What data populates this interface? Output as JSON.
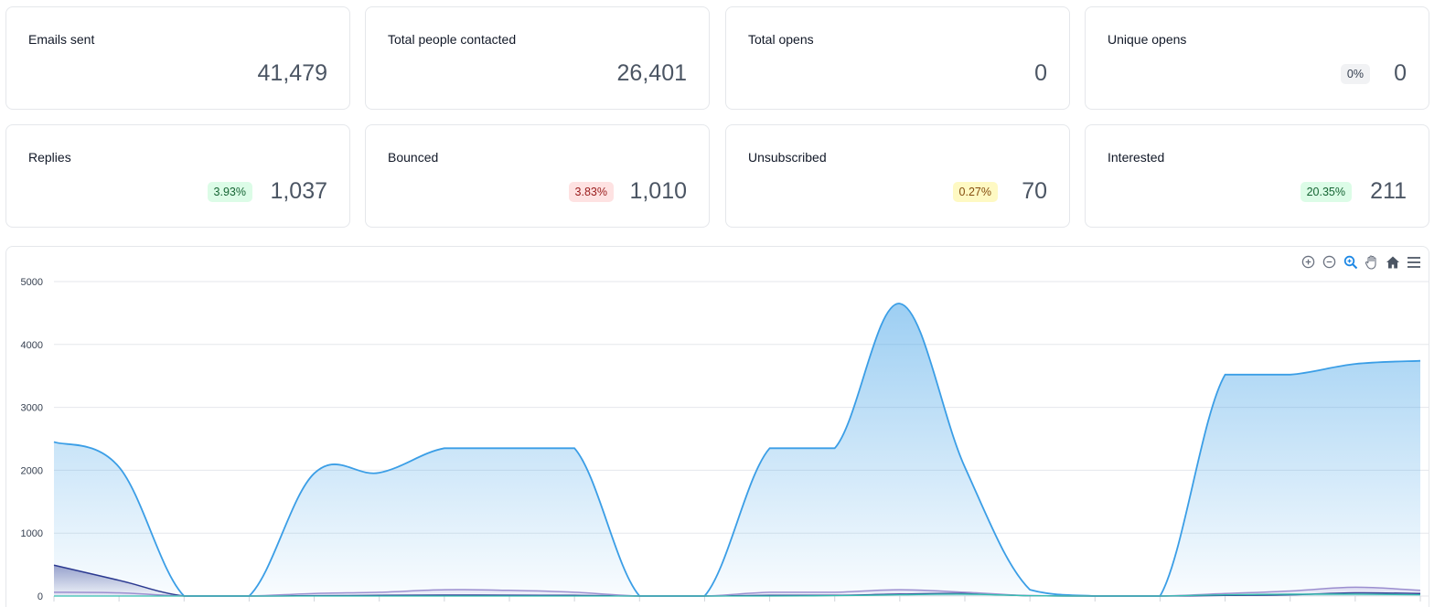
{
  "stats": [
    {
      "label": "Emails sent",
      "value": "41,479",
      "badge": null
    },
    {
      "label": "Total people contacted",
      "value": "26,401",
      "badge": null
    },
    {
      "label": "Total opens",
      "value": "0",
      "badge": null
    },
    {
      "label": "Unique opens",
      "value": "0",
      "badge": "0%",
      "badge_color": "gray"
    },
    {
      "label": "Replies",
      "value": "1,037",
      "badge": "3.93%",
      "badge_color": "green"
    },
    {
      "label": "Bounced",
      "value": "1,010",
      "badge": "3.83%",
      "badge_color": "red"
    },
    {
      "label": "Unsubscribed",
      "value": "70",
      "badge": "0.27%",
      "badge_color": "yellow"
    },
    {
      "label": "Interested",
      "value": "211",
      "badge": "20.35%",
      "badge_color": "green"
    }
  ],
  "toolbar": {
    "icons": [
      "zoom-in-icon",
      "zoom-out-icon",
      "magnifier-icon",
      "pan-hand-icon",
      "home-icon",
      "menu-icon"
    ]
  },
  "colors": {
    "primary_area": "#3b9ee6",
    "secondary_area": "#2b3990",
    "tertiary_line": "#9c8fd0",
    "teal_line": "#35c0b0"
  },
  "chart_data": {
    "type": "area",
    "ylim": [
      0,
      5000
    ],
    "y_ticks": [
      "0",
      "1000",
      "2000",
      "3000",
      "4000",
      "5000"
    ],
    "x_count": 22,
    "series": [
      {
        "values": [
          2450,
          2050,
          0,
          0,
          1950,
          1960,
          2350,
          2350,
          2350,
          0,
          0,
          2350,
          2350,
          4650,
          2050,
          100,
          0,
          0,
          3520,
          3520,
          3690,
          3740
        ]
      },
      {
        "values": [
          490,
          250,
          0,
          0,
          5,
          10,
          15,
          12,
          10,
          0,
          0,
          10,
          10,
          30,
          40,
          5,
          0,
          0,
          10,
          20,
          50,
          40
        ]
      },
      {
        "values": [
          60,
          50,
          0,
          0,
          40,
          60,
          100,
          90,
          60,
          0,
          0,
          60,
          60,
          100,
          60,
          5,
          0,
          0,
          40,
          80,
          140,
          90
        ]
      },
      {
        "values": [
          0,
          0,
          0,
          0,
          0,
          0,
          0,
          0,
          0,
          0,
          0,
          0,
          5,
          20,
          30,
          5,
          0,
          0,
          20,
          30,
          30,
          20
        ]
      }
    ],
    "grid": true,
    "legend": "none"
  }
}
